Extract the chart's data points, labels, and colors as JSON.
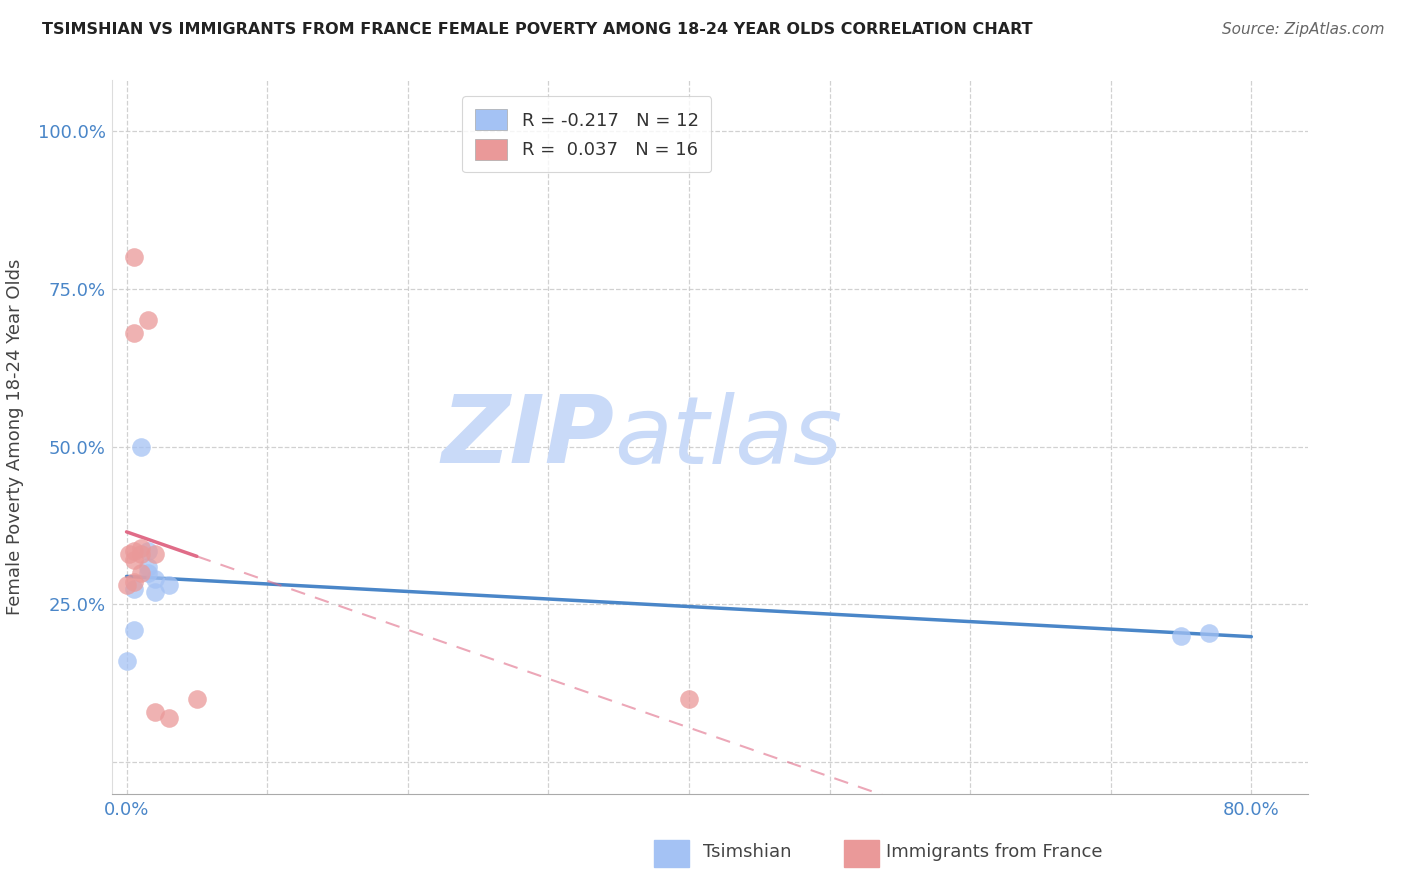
{
  "title": "TSIMSHIAN VS IMMIGRANTS FROM FRANCE FEMALE POVERTY AMONG 18-24 YEAR OLDS CORRELATION CHART",
  "source": "Source: ZipAtlas.com",
  "ylabel_text": "Female Poverty Among 18-24 Year Olds",
  "xlim": [
    -1,
    84
  ],
  "ylim": [
    -5,
    108
  ],
  "blue_color": "#a4c2f4",
  "pink_color": "#ea9999",
  "blue_line_color": "#4a86c8",
  "pink_line_color": "#e06c88",
  "tick_color": "#4a86c8",
  "grid_color": "#cccccc",
  "watermark_color": "#c9daf8",
  "legend_r1": "R = -0.217",
  "legend_n1": "N = 12",
  "legend_r2": "R =  0.037",
  "legend_n2": "N = 16",
  "legend1_label": "Tsimshian",
  "legend2_label": "Immigrants from France",
  "tsimshian_x": [
    0.0,
    0.5,
    0.5,
    1.0,
    1.5,
    1.5,
    1.5,
    2.0,
    2.0,
    3.0,
    75.0,
    77.0
  ],
  "tsimshian_y": [
    16.0,
    21.0,
    27.5,
    50.0,
    30.0,
    31.0,
    33.5,
    29.0,
    27.0,
    28.0,
    20.0,
    20.5
  ],
  "france_x": [
    0.0,
    0.2,
    0.5,
    0.5,
    0.5,
    0.5,
    0.5,
    1.0,
    1.0,
    1.0,
    1.5,
    2.0,
    2.0,
    3.0,
    5.0,
    40.0
  ],
  "france_y": [
    28.0,
    33.0,
    68.0,
    80.0,
    28.5,
    32.0,
    33.5,
    30.0,
    33.0,
    34.0,
    70.0,
    8.0,
    33.0,
    7.0,
    10.0,
    10.0
  ],
  "x_ticks": [
    0,
    10,
    20,
    30,
    40,
    50,
    60,
    70,
    80
  ],
  "x_tick_labels": [
    "0.0%",
    "",
    "",
    "",
    "",
    "",
    "",
    "",
    "80.0%"
  ],
  "y_ticks": [
    0,
    25,
    50,
    75,
    100
  ],
  "y_tick_labels": [
    "",
    "25.0%",
    "50.0%",
    "75.0%",
    "100.0%"
  ]
}
